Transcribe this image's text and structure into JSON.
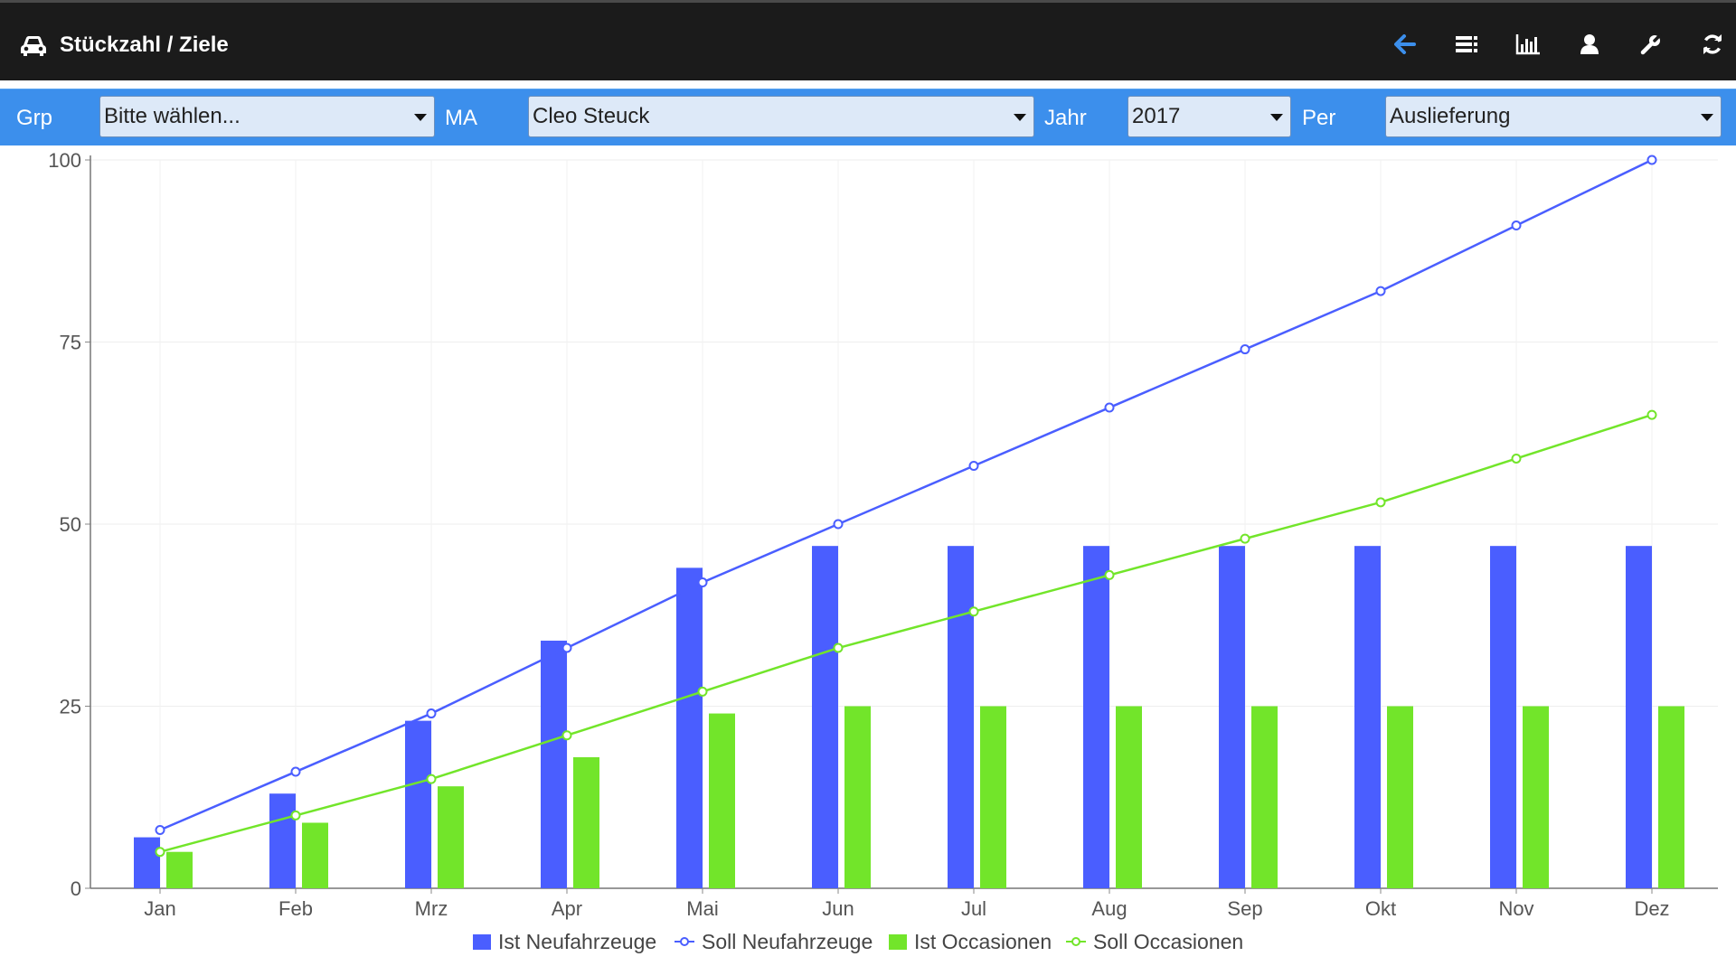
{
  "header": {
    "title": "Stückzahl / Ziele",
    "brand_icon": "car-icon",
    "nav_icons": [
      "back-arrow-icon",
      "list-icon",
      "bar-chart-icon",
      "user-icon",
      "wrench-icon",
      "refresh-icon",
      "help-icon"
    ],
    "help_glyph": "?"
  },
  "filters": {
    "grp_label": "Grp",
    "grp_value": "Bitte wählen...",
    "ma_label": "MA",
    "ma_value": "Cleo Steuck",
    "jahr_label": "Jahr",
    "jahr_value": "2017",
    "per_label": "Per",
    "per_value": "Auslieferung"
  },
  "colors": {
    "header_bg": "#1b1b1b",
    "filterbar_bg": "#3c8fec",
    "accent": "#3c8fec",
    "blue_series": "#4a5eff",
    "green_series": "#72e52a"
  },
  "chart_data": {
    "type": "bar",
    "categories": [
      "Jan",
      "Feb",
      "Mrz",
      "Apr",
      "Mai",
      "Jun",
      "Jul",
      "Aug",
      "Sep",
      "Okt",
      "Nov",
      "Dez"
    ],
    "ylim": [
      0,
      100
    ],
    "yticks": [
      "0",
      "25",
      "50",
      "75",
      "100"
    ],
    "grid": true,
    "legend_position": "bottom",
    "series": [
      {
        "name": "Ist Neufahrzeuge",
        "kind": "bar",
        "color": "#4a5eff",
        "values": [
          7,
          13,
          23,
          34,
          44,
          47,
          47,
          47,
          47,
          47,
          47,
          47
        ]
      },
      {
        "name": "Soll Neufahrzeuge",
        "kind": "line",
        "color": "#4a5eff",
        "values": [
          8,
          16,
          24,
          33,
          42,
          50,
          58,
          66,
          74,
          82,
          91,
          100
        ]
      },
      {
        "name": "Ist Occasionen",
        "kind": "bar",
        "color": "#72e52a",
        "values": [
          5,
          9,
          14,
          18,
          24,
          25,
          25,
          25,
          25,
          25,
          25,
          25
        ]
      },
      {
        "name": "Soll Occasionen",
        "kind": "line",
        "color": "#72e52a",
        "values": [
          5,
          10,
          15,
          21,
          27,
          33,
          38,
          43,
          48,
          53,
          59,
          65
        ]
      }
    ]
  }
}
